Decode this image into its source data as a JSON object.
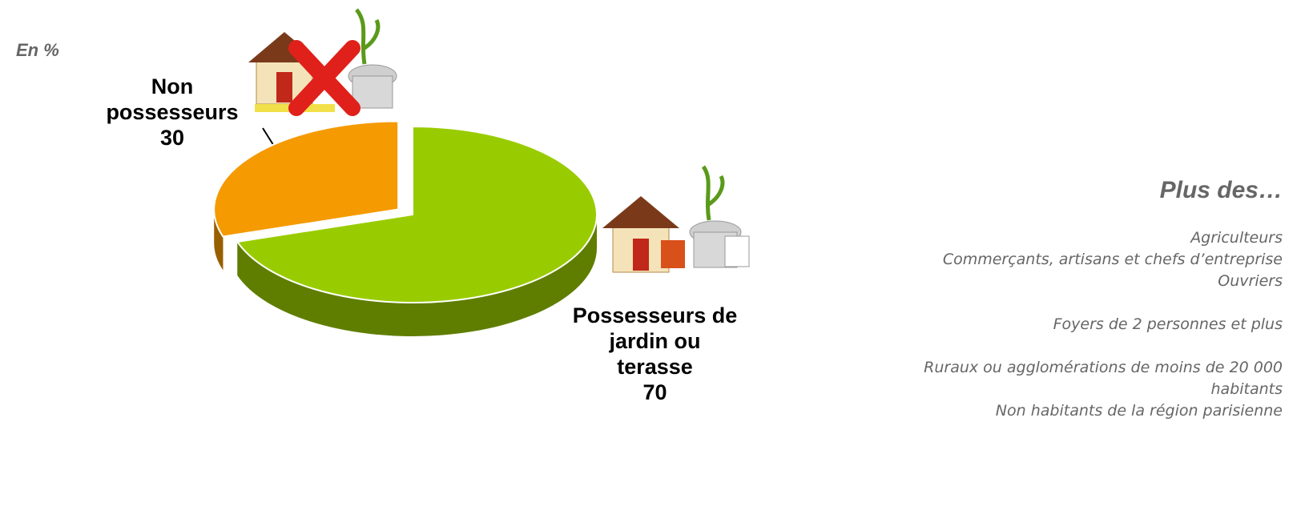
{
  "chart_data": {
    "type": "pie",
    "unit_label": "En %",
    "categories": [
      "Non possesseurs",
      "Possesseurs de jardin ou terasse"
    ],
    "values": [
      30,
      70
    ],
    "colors": [
      "#f59a00",
      "#99cc00"
    ],
    "side_panel": {
      "heading": "Plus des…",
      "groups": [
        [
          "Agriculteurs",
          "Commerçants, artisans et chefs d’entreprise",
          "Ouvriers"
        ],
        [
          "Foyers de 2 personnes et plus"
        ],
        [
          "Ruraux ou agglomérations de moins de 20 000 habitants",
          "Non habitants de la région parisienne"
        ]
      ]
    }
  }
}
